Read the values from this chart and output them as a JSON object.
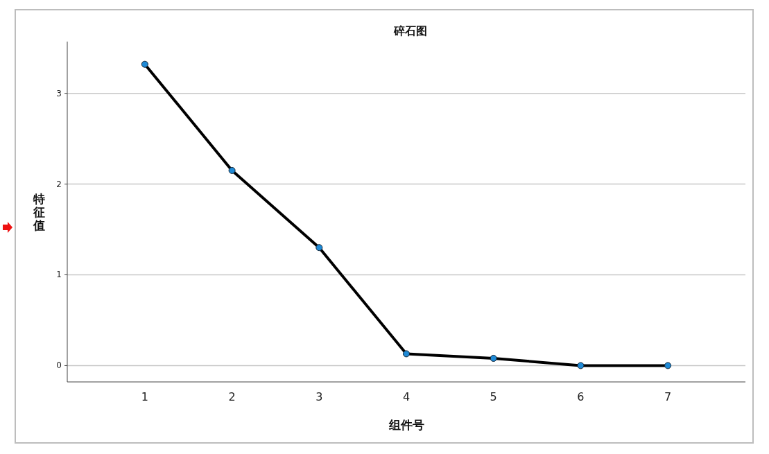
{
  "chart_data": {
    "type": "line",
    "title": "碎石图",
    "xlabel": "组件号",
    "ylabel": "特征值",
    "categories": [
      "1",
      "2",
      "3",
      "4",
      "5",
      "6",
      "7"
    ],
    "series": [
      {
        "color": "#000000",
        "values": [
          3.32,
          2.15,
          1.3,
          0.13,
          0.08,
          0.0,
          0.0
        ]
      }
    ],
    "marker": "circle",
    "line_style": "solid",
    "grid": "y",
    "ylim": [
      -0.18,
      3.57
    ],
    "yticks": [
      0,
      1,
      2,
      3
    ]
  }
}
